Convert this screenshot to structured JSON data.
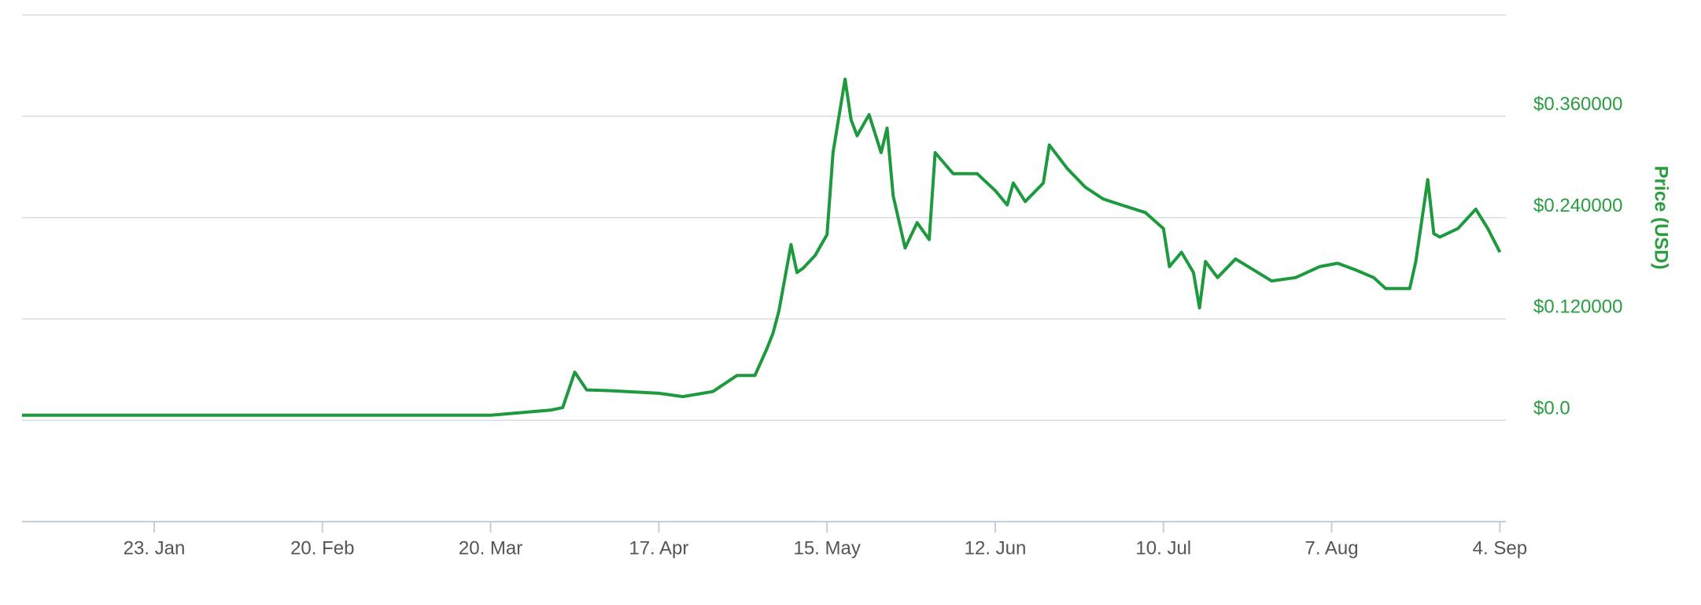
{
  "chart_data": {
    "type": "line",
    "y_label": "Price (USD)",
    "color": "#1e9a3e",
    "label_color": "#2a9d3f",
    "grid": true,
    "xlim": [
      "1. Jan",
      "5. Sep"
    ],
    "xticks": [
      "23. Jan",
      "20. Feb",
      "20. Mar",
      "17. Apr",
      "15. May",
      "12. Jun",
      "10. Jul",
      "7. Aug",
      "4. Sep"
    ],
    "ylim": [
      -0.12,
      0.48
    ],
    "yticks": [
      {
        "value": 0,
        "label": "$0.0"
      },
      {
        "value": 0.12,
        "label": "$0.120000"
      },
      {
        "value": 0.24,
        "label": "$0.240000"
      },
      {
        "value": 0.36,
        "label": "$0.360000"
      }
    ],
    "x": [
      "1. Jan",
      "15. Jan",
      "3. Feb",
      "21. Feb",
      "11. Mar",
      "20. Mar",
      "25. Mar",
      "30. Mar",
      "1. Apr",
      "3. Apr",
      "5. Apr",
      "9. Apr",
      "17. Apr",
      "21. Apr",
      "26. Apr",
      "30. Apr",
      "3. May",
      "5. May",
      "6. May",
      "7. May",
      "9. May",
      "10. May",
      "11. May",
      "13. May",
      "15. May",
      "16. May",
      "18. May",
      "19. May",
      "20. May",
      "22. May",
      "24. May",
      "25. May",
      "26. May",
      "28. May",
      "30. May",
      "1. Jun",
      "2. Jun",
      "5. Jun",
      "9. Jun",
      "12. Jun",
      "14. Jun",
      "15. Jun",
      "17. Jun",
      "20. Jun",
      "21. Jun",
      "24. Jun",
      "27. Jun",
      "30. Jun",
      "3. Jul",
      "7. Jul",
      "10. Jul",
      "11. Jul",
      "13. Jul",
      "15. Jul",
      "16. Jul",
      "17. Jul",
      "19. Jul",
      "22. Jul",
      "25. Jul",
      "28. Jul",
      "1. Aug",
      "5. Aug",
      "8. Aug",
      "11. Aug",
      "14. Aug",
      "16. Aug",
      "20. Aug",
      "21. Aug",
      "23. Aug",
      "24. Aug",
      "25. Aug",
      "28. Aug",
      "31. Aug",
      "2. Sep",
      "4. Sep"
    ],
    "values": [
      0.006,
      0.006,
      0.006,
      0.006,
      0.006,
      0.006,
      0.009,
      0.012,
      0.015,
      0.057,
      0.036,
      0.035,
      0.032,
      0.028,
      0.034,
      0.053,
      0.053,
      0.085,
      0.103,
      0.13,
      0.208,
      0.175,
      0.18,
      0.195,
      0.22,
      0.317,
      0.404,
      0.356,
      0.337,
      0.362,
      0.317,
      0.346,
      0.266,
      0.204,
      0.234,
      0.214,
      0.317,
      0.292,
      0.292,
      0.272,
      0.255,
      0.281,
      0.259,
      0.281,
      0.326,
      0.298,
      0.276,
      0.262,
      0.255,
      0.246,
      0.227,
      0.182,
      0.199,
      0.175,
      0.133,
      0.188,
      0.169,
      0.191,
      0.178,
      0.165,
      0.169,
      0.182,
      0.186,
      0.178,
      0.169,
      0.156,
      0.156,
      0.188,
      0.285,
      0.221,
      0.217,
      0.227,
      0.25,
      0.227,
      0.199
    ]
  }
}
